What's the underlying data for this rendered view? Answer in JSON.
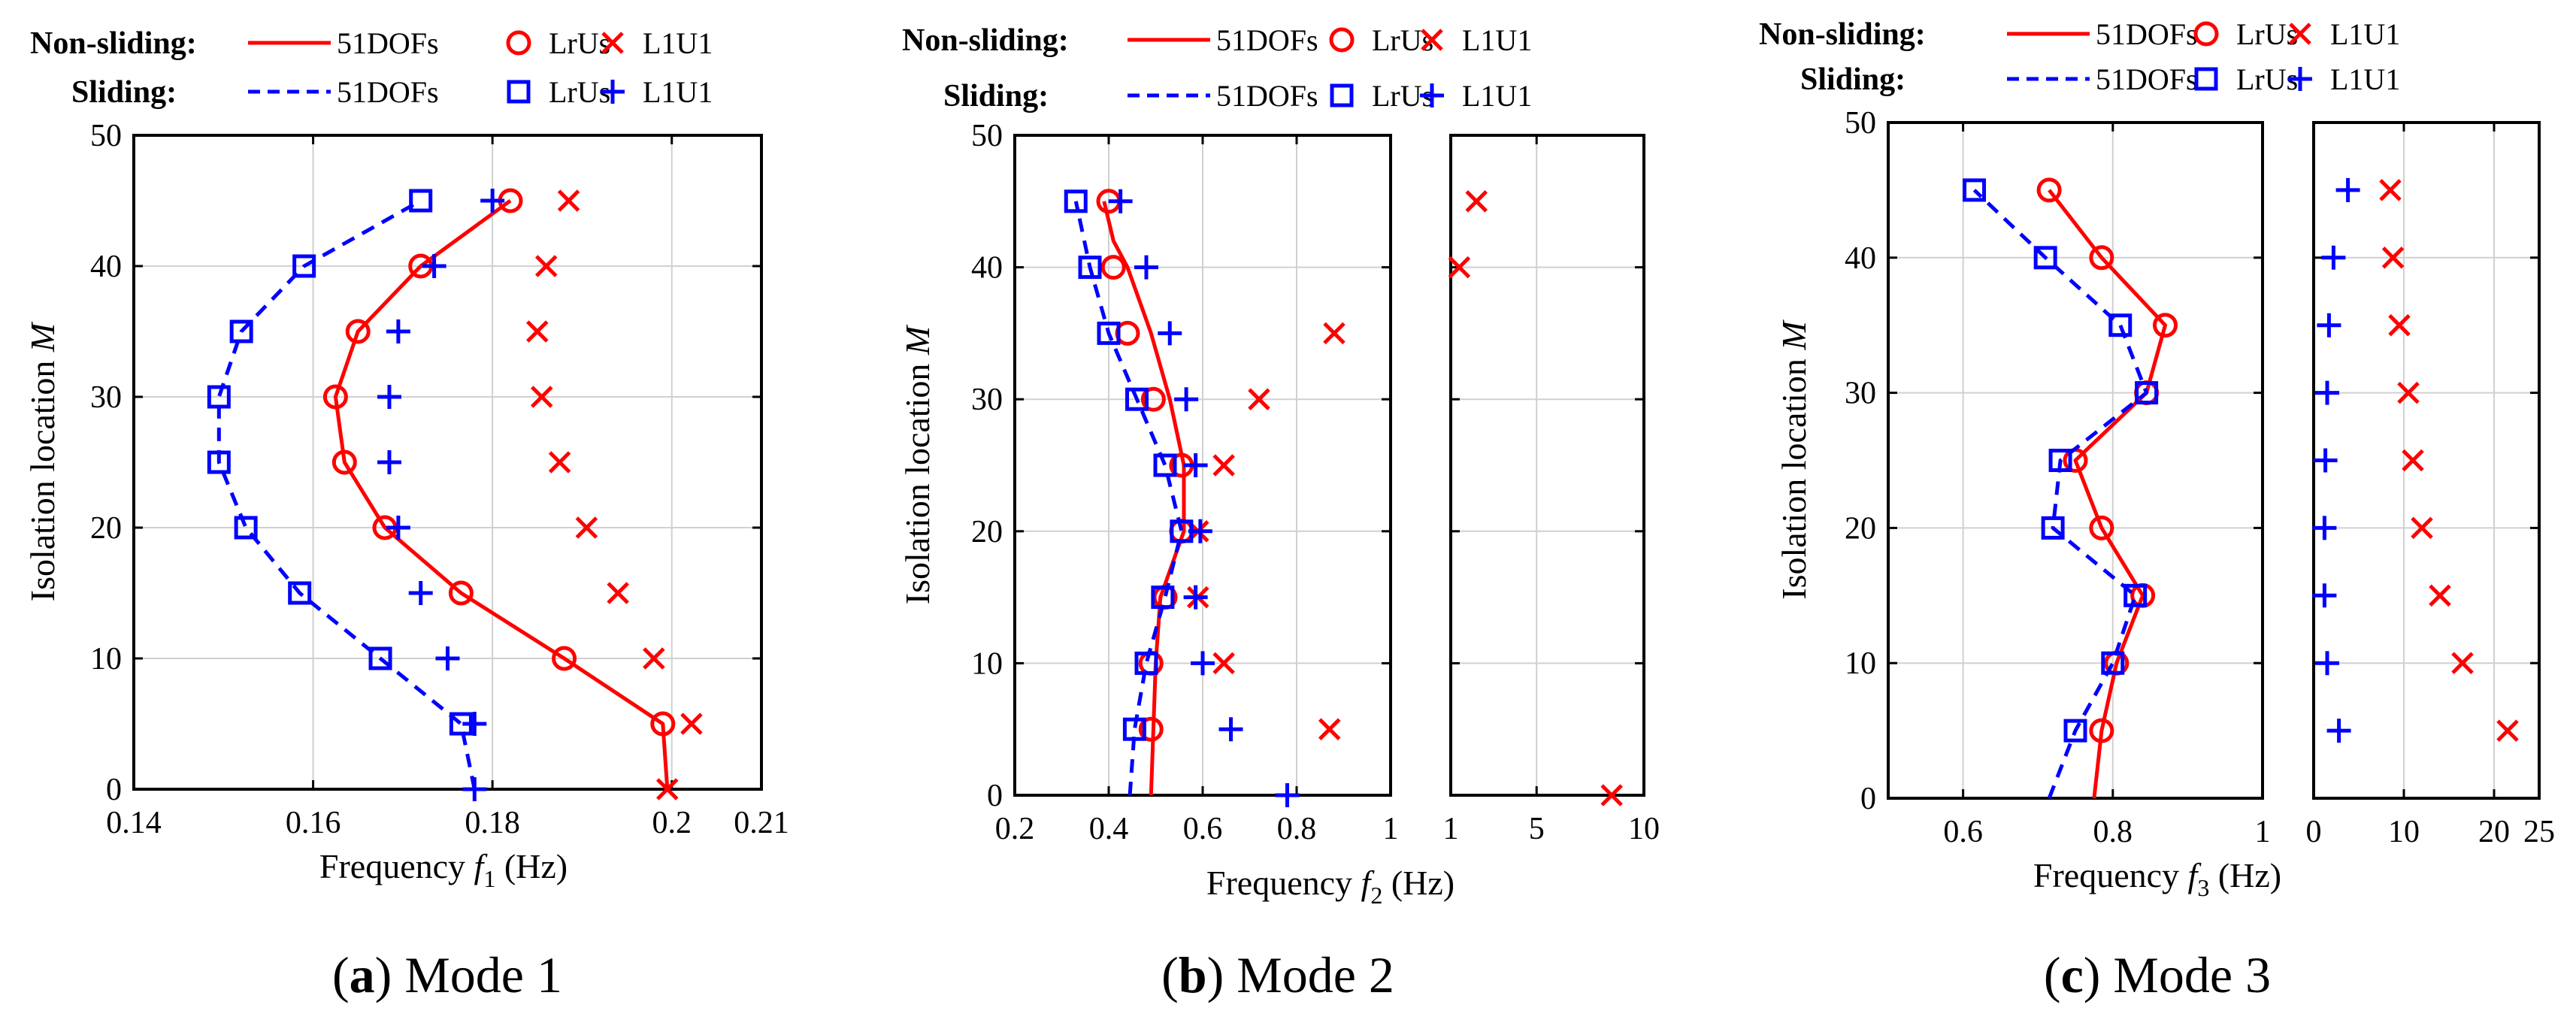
{
  "legend_labels": {
    "nonsliding": "Non-sliding:",
    "sliding": "Sliding:",
    "entries": [
      "51DOFs",
      "LrUs",
      "L1U1"
    ]
  },
  "colors": {
    "nonsliding": "#ff0000",
    "sliding": "#0000ff",
    "grid": "#d0d0d0",
    "axis": "#000000"
  },
  "ylabel": {
    "text": "Isolation location",
    "symbol": "M"
  },
  "chart_data": [
    {
      "type": "line",
      "caption_letter": "a",
      "caption_text": " Mode 1",
      "xlabel_prefix": "Frequency ",
      "xlabel_symbol": "f",
      "xlabel_sub": "1",
      "xlabel_unit": "  (Hz)",
      "xlim": [
        0.14,
        0.21
      ],
      "xticks": [
        0.14,
        0.16,
        0.18,
        0.2,
        0.21
      ],
      "xtick_labels": [
        "0.14",
        "0.16",
        "0.18",
        "0.2",
        "0.21"
      ],
      "ylim": [
        0,
        50
      ],
      "yticks": [
        0,
        10,
        20,
        30,
        40,
        50
      ],
      "grid": true,
      "series": [
        {
          "group": "nonsliding",
          "marker": "line",
          "x": [
            0.1995,
            0.199,
            0.188,
            0.1765,
            0.168,
            0.1635,
            0.1625,
            0.165,
            0.172,
            0.182
          ],
          "y": [
            0,
            5,
            10,
            15,
            20,
            25,
            30,
            35,
            40,
            45
          ]
        },
        {
          "group": "nonsliding",
          "marker": "circle",
          "x": [
            0.199,
            0.188,
            0.1765,
            0.168,
            0.1635,
            0.1625,
            0.165,
            0.172,
            0.182
          ],
          "y": [
            5,
            10,
            15,
            20,
            25,
            30,
            35,
            40,
            45
          ]
        },
        {
          "group": "nonsliding",
          "marker": "x",
          "x": [
            0.1995,
            0.2022,
            0.198,
            0.194,
            0.1905,
            0.1875,
            0.1855,
            0.185,
            0.186,
            0.1885
          ],
          "y": [
            0,
            5,
            10,
            15,
            20,
            25,
            30,
            35,
            40,
            45
          ]
        },
        {
          "group": "sliding",
          "marker": "line",
          "x": [
            0.178,
            0.1765,
            0.1675,
            0.1585,
            0.1525,
            0.1495,
            0.1495,
            0.152,
            0.159,
            0.172
          ],
          "y": [
            0,
            5,
            10,
            15,
            20,
            25,
            30,
            35,
            40,
            45
          ]
        },
        {
          "group": "sliding",
          "marker": "square",
          "x": [
            0.1765,
            0.1675,
            0.1585,
            0.1525,
            0.1495,
            0.1495,
            0.152,
            0.159,
            0.172
          ],
          "y": [
            5,
            10,
            15,
            20,
            25,
            30,
            35,
            40,
            45
          ]
        },
        {
          "group": "sliding",
          "marker": "plus",
          "x": [
            0.178,
            0.178,
            0.175,
            0.172,
            0.1695,
            0.1685,
            0.1685,
            0.1695,
            0.1735,
            0.18
          ],
          "y": [
            0,
            5,
            10,
            15,
            20,
            25,
            30,
            35,
            40,
            45
          ]
        }
      ]
    },
    {
      "type": "line",
      "caption_letter": "b",
      "caption_text": " Mode 2",
      "xlabel_prefix": "Frequency ",
      "xlabel_symbol": "f",
      "xlabel_sub": "2",
      "xlabel_unit": "  (Hz)",
      "xlim": [
        0.2,
        1
      ],
      "xticks": [
        0.2,
        0.4,
        0.6,
        0.8,
        1
      ],
      "xtick_labels": [
        "0.2",
        "0.4",
        "0.6",
        "0.8",
        "1"
      ],
      "xlim2": [
        1,
        10
      ],
      "xticks2": [
        1,
        5,
        10
      ],
      "xtick_labels2": [
        "1",
        "5",
        "10"
      ],
      "ylim": [
        0,
        50
      ],
      "yticks": [
        0,
        10,
        20,
        30,
        40,
        50
      ],
      "grid": true,
      "series": [
        {
          "group": "nonsliding",
          "marker": "line",
          "x": [
            0.49,
            0.495,
            0.5,
            0.51,
            0.56,
            0.56,
            0.53,
            0.49,
            0.44,
            0.41,
            0.39
          ],
          "y": [
            0,
            5,
            10,
            15,
            20,
            25,
            30,
            35,
            40,
            42,
            45
          ]
        },
        {
          "group": "nonsliding",
          "marker": "circle",
          "x": [
            0.49,
            0.49,
            0.52,
            0.555,
            0.555,
            0.495,
            0.44,
            0.41,
            0.4
          ],
          "y": [
            5,
            10,
            15,
            20,
            25,
            30,
            35,
            40,
            45
          ]
        },
        {
          "group": "nonsliding",
          "marker": "x",
          "x": [
            0.87,
            0.645,
            0.59,
            0.59,
            0.645,
            0.72,
            0.88
          ],
          "y": [
            5,
            10,
            15,
            20,
            25,
            30,
            35
          ]
        },
        {
          "group": "nonsliding",
          "marker": "x",
          "axis": 2,
          "x": [
            8.5,
            1.4,
            2.2
          ],
          "y": [
            0,
            40,
            45
          ]
        },
        {
          "group": "sliding",
          "marker": "line",
          "x": [
            0.445,
            0.455,
            0.48,
            0.52,
            0.555,
            0.52,
            0.46,
            0.4,
            0.36,
            0.33
          ],
          "y": [
            0,
            5,
            10,
            15,
            20,
            25,
            30,
            35,
            40,
            45
          ]
        },
        {
          "group": "sliding",
          "marker": "square",
          "x": [
            0.455,
            0.48,
            0.515,
            0.555,
            0.52,
            0.46,
            0.4,
            0.36,
            0.33
          ],
          "y": [
            5,
            10,
            15,
            20,
            25,
            30,
            35,
            40,
            45
          ]
        },
        {
          "group": "sliding",
          "marker": "plus",
          "x": [
            0.78,
            0.66,
            0.6,
            0.585,
            0.595,
            0.585,
            0.565,
            0.53,
            0.48,
            0.425
          ],
          "y": [
            0,
            5,
            10,
            15,
            20,
            25,
            30,
            35,
            40,
            45
          ]
        }
      ]
    },
    {
      "type": "line",
      "caption_letter": "c",
      "caption_text": " Mode 3",
      "xlabel_prefix": "Frequency ",
      "xlabel_symbol": "f",
      "xlabel_sub": "3",
      "xlabel_unit": "  (Hz)",
      "xlim": [
        0.5,
        1
      ],
      "xticks": [
        0.6,
        0.8,
        1
      ],
      "xtick_labels": [
        "0.6",
        "0.8",
        "1"
      ],
      "xlim2": [
        0,
        25
      ],
      "xticks2": [
        0,
        10,
        20,
        25
      ],
      "xtick_labels2": [
        "0",
        "10",
        "20",
        "25"
      ],
      "ylim": [
        0,
        50
      ],
      "yticks": [
        0,
        10,
        20,
        30,
        40,
        50
      ],
      "grid": true,
      "series": [
        {
          "group": "nonsliding",
          "marker": "line",
          "x": [
            0.775,
            0.785,
            0.805,
            0.84,
            0.785,
            0.75,
            0.845,
            0.87,
            0.785,
            0.715
          ],
          "y": [
            0,
            5,
            10,
            15,
            20,
            25,
            30,
            35,
            40,
            45
          ]
        },
        {
          "group": "nonsliding",
          "marker": "circle",
          "x": [
            0.785,
            0.805,
            0.84,
            0.785,
            0.75,
            0.845,
            0.87,
            0.785,
            0.715
          ],
          "y": [
            5,
            10,
            15,
            20,
            25,
            30,
            35,
            40,
            45
          ]
        },
        {
          "group": "nonsliding",
          "marker": "x",
          "axis": 2,
          "x": [
            21.5,
            16.5,
            14,
            12,
            11,
            10.5,
            9.5,
            8.8,
            8.5
          ],
          "y": [
            5,
            10,
            15,
            20,
            25,
            30,
            35,
            40,
            45
          ]
        },
        {
          "group": "sliding",
          "marker": "line",
          "x": [
            0.715,
            0.75,
            0.8,
            0.83,
            0.72,
            0.73,
            0.845,
            0.81,
            0.71,
            0.615
          ],
          "y": [
            0,
            5,
            10,
            15,
            20,
            25,
            30,
            35,
            40,
            45
          ]
        },
        {
          "group": "sliding",
          "marker": "square",
          "x": [
            0.75,
            0.8,
            0.83,
            0.72,
            0.73,
            0.845,
            0.81,
            0.71,
            0.615
          ],
          "y": [
            5,
            10,
            15,
            20,
            25,
            30,
            35,
            40,
            45
          ]
        },
        {
          "group": "sliding",
          "marker": "plus",
          "axis": 2,
          "x": [
            2.8,
            1.5,
            1.2,
            1.2,
            1.3,
            1.5,
            1.7,
            2.2,
            3.8
          ],
          "y": [
            5,
            10,
            15,
            20,
            25,
            30,
            35,
            40,
            45
          ]
        }
      ]
    }
  ]
}
